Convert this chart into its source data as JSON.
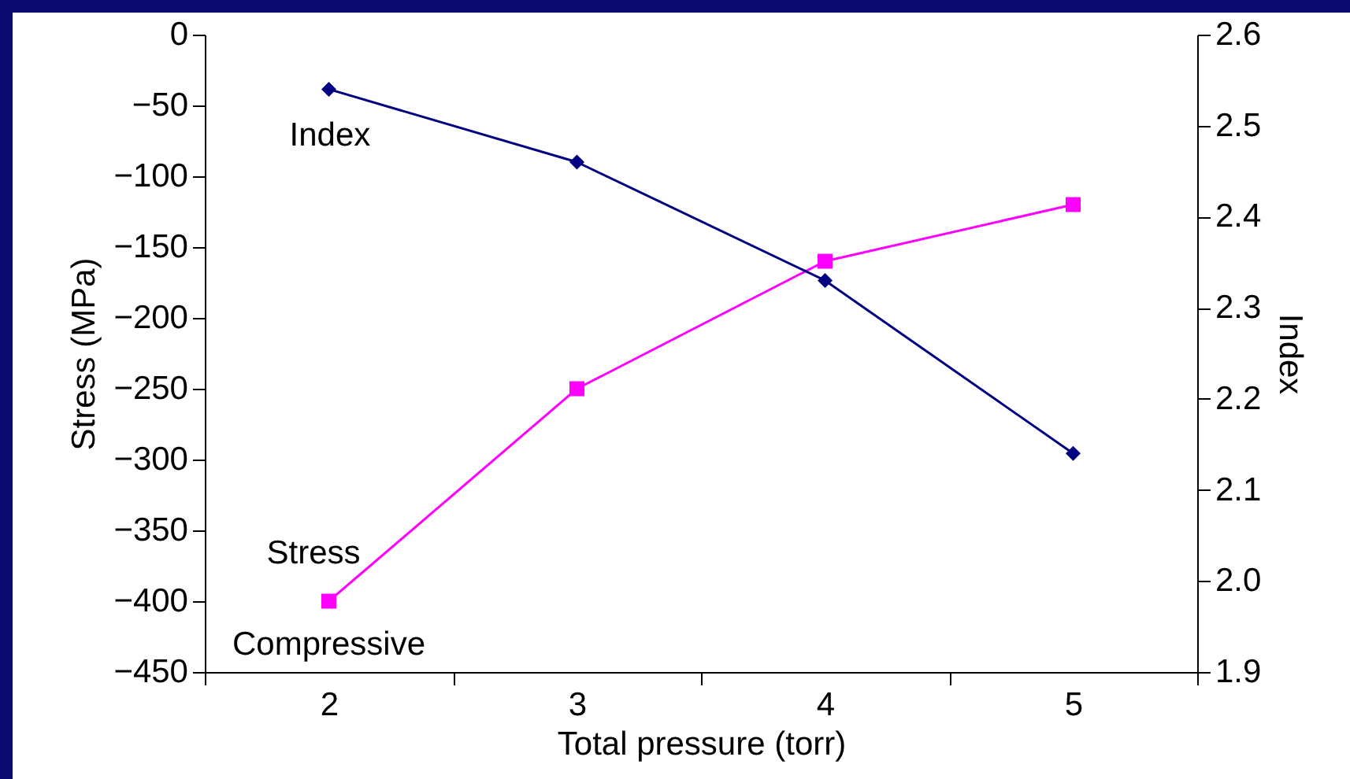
{
  "chart_data": {
    "type": "line",
    "xlabel": "Total pressure (torr)",
    "ylabel": "Stress (MPa)",
    "y2label": "Index",
    "categories": [
      "2",
      "3",
      "4",
      "5"
    ],
    "series": [
      {
        "name": "Stress",
        "color": "#ff00ff",
        "marker": "square",
        "values": [
          -400,
          -250,
          -160,
          -120
        ]
      },
      {
        "name": "Index",
        "color": "#000080",
        "marker": "diamond",
        "axis": "y2",
        "values": [
          2.54,
          2.46,
          2.33,
          2.14
        ]
      }
    ],
    "ylim": [
      -450,
      0
    ],
    "yticks": [
      -450,
      -400,
      -350,
      -300,
      -250,
      -200,
      -150,
      -100,
      -50,
      0
    ],
    "y2lim": [
      1.9,
      2.6
    ],
    "y2ticks": [
      1.9,
      {
        "value": 2,
        "label": "2.0"
      },
      2.1,
      2.2,
      2.3,
      2.4,
      2.5,
      2.6
    ],
    "annotations": [
      {
        "text": "Compressive",
        "x": "2",
        "y": -400
      }
    ],
    "grid": false
  }
}
